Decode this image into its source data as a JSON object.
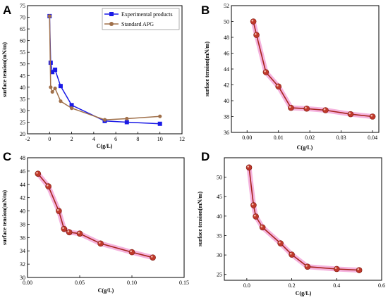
{
  "colors": {
    "experimental": "#1a1ae6",
    "standard": "#a0704a",
    "line_red": "#a8251e",
    "marker": "#c0392b",
    "halo": "#f3a6d8"
  },
  "chart_data": [
    {
      "panel": "A",
      "type": "line",
      "xlabel": "C(g/L)",
      "ylabel": "surface tension(mN/m)",
      "xlim": [
        -2,
        12
      ],
      "ylim": [
        20,
        75
      ],
      "xticks": [
        -2,
        0,
        2,
        4,
        6,
        8,
        10,
        12
      ],
      "yticks": [
        20,
        25,
        30,
        35,
        40,
        45,
        50,
        55,
        60,
        65,
        70,
        75
      ],
      "legend_position": "top-right",
      "series": [
        {
          "name": "Experimental products",
          "x": [
            0,
            0.1,
            0.25,
            0.5,
            1,
            2,
            5,
            7,
            10
          ],
          "y": [
            70.5,
            50.5,
            46.5,
            47.5,
            40.5,
            32.3,
            25.5,
            25,
            24.3
          ]
        },
        {
          "name": "Standard APG",
          "x": [
            0,
            0.1,
            0.25,
            0.5,
            1,
            2,
            5,
            7,
            10
          ],
          "y": [
            70.5,
            40,
            38,
            39.5,
            34,
            31,
            26,
            26.5,
            27.5
          ]
        }
      ]
    },
    {
      "panel": "B",
      "type": "line",
      "xlabel": "C(g/L)",
      "ylabel": "surface tension(mN/m)",
      "xlim": [
        -0.005,
        0.042
      ],
      "ylim": [
        36,
        52
      ],
      "xticks": [
        0.0,
        0.01,
        0.02,
        0.03,
        0.04
      ],
      "xtick_labels": [
        "0.00",
        "0.01",
        "0.02",
        "0.03",
        "0.04"
      ],
      "yticks": [
        36,
        38,
        40,
        42,
        44,
        46,
        48,
        50,
        52
      ],
      "series": [
        {
          "x": [
            0.002,
            0.003,
            0.006,
            0.01,
            0.014,
            0.019,
            0.025,
            0.033,
            0.04
          ],
          "y": [
            50,
            48.3,
            43.6,
            41.8,
            39.1,
            39.0,
            38.8,
            38.3,
            38.0
          ]
        }
      ]
    },
    {
      "panel": "C",
      "type": "line",
      "xlabel": "C(g/L)",
      "ylabel": "surface tension(mN/m)",
      "xlim": [
        0,
        0.15
      ],
      "ylim": [
        30,
        48
      ],
      "xticks": [
        0.0,
        0.05,
        0.1,
        0.15
      ],
      "xtick_labels": [
        "0.00",
        "0.05",
        "0.10",
        "0.15"
      ],
      "yticks": [
        30,
        32,
        34,
        36,
        38,
        40,
        42,
        44,
        46,
        48
      ],
      "series": [
        {
          "x": [
            0.01,
            0.02,
            0.03,
            0.035,
            0.04,
            0.05,
            0.07,
            0.1,
            0.12
          ],
          "y": [
            45.6,
            43.7,
            40.0,
            37.3,
            36.8,
            36.6,
            35.1,
            33.8,
            33.0
          ]
        }
      ]
    },
    {
      "panel": "D",
      "type": "line",
      "xlabel": "C(g/L)",
      "ylabel": "surface tension(mN/m)",
      "xlim": [
        -0.1,
        0.6
      ],
      "ylim": [
        23.5,
        55
      ],
      "xticks": [
        0.0,
        0.2,
        0.4,
        0.6
      ],
      "xtick_labels": [
        "0.0",
        "0.2",
        "0.4",
        "0.6"
      ],
      "yticks": [
        25,
        30,
        35,
        40,
        45,
        50
      ],
      "series": [
        {
          "x": [
            0.01,
            0.03,
            0.04,
            0.07,
            0.15,
            0.2,
            0.27,
            0.4,
            0.5
          ],
          "y": [
            52.5,
            42.8,
            39.9,
            37.1,
            33.0,
            30.1,
            27.0,
            26.4,
            26.1
          ]
        }
      ]
    }
  ]
}
